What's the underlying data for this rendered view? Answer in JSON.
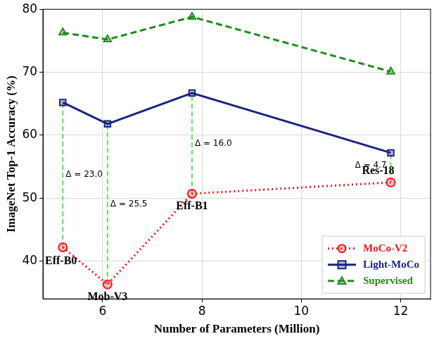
{
  "chart_data": {
    "type": "line",
    "x_label": "Number of Parameters (Million)",
    "y_label": "ImageNet Top-1 Accuracy (%)",
    "x": [
      5.2,
      6.1,
      7.8,
      11.8
    ],
    "point_labels": [
      "Eff-B0",
      "Mob-V3",
      "Eff-B1",
      "Res-18"
    ],
    "annotations": [
      "Δ = 23.0",
      "Δ = 25.5",
      "Δ = 16.0",
      "Δ = 4.7"
    ],
    "series": [
      {
        "name": "MoCo-V2",
        "color": "#e8191c",
        "marker": "circle",
        "line_style": "dotted",
        "values": [
          42.2,
          36.3,
          50.7,
          52.5
        ]
      },
      {
        "name": "Light-MoCo",
        "color": "#1a237e",
        "marker": "square",
        "line_style": "solid",
        "values": [
          65.2,
          61.8,
          66.7,
          57.2
        ]
      },
      {
        "name": "Supervised",
        "color": "#1e8c1e",
        "marker": "triangle",
        "line_style": "dashed",
        "values": [
          76.3,
          75.2,
          78.8,
          70.1
        ]
      }
    ],
    "xlim": [
      4.8,
      12.6
    ],
    "xticks": [
      6,
      8,
      10,
      12
    ],
    "ylim": [
      34,
      80
    ],
    "yticks": [
      40,
      50,
      60,
      70,
      80
    ],
    "grid": true,
    "legend": "lower right"
  }
}
